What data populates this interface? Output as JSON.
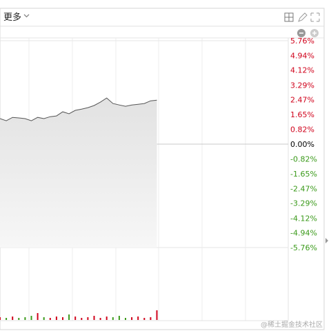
{
  "toolbar": {
    "menu": "更多"
  },
  "chart_data": {
    "type": "line",
    "values": [
      1.42,
      1.3,
      1.49,
      1.46,
      1.42,
      1.3,
      1.49,
      1.42,
      1.53,
      1.57,
      1.8,
      1.69,
      1.88,
      1.95,
      2.03,
      2.15,
      2.34,
      2.57,
      2.26,
      2.18,
      2.11,
      2.18,
      2.22,
      2.26,
      2.41,
      2.45
    ],
    "color": "#555555",
    "ylim": [
      -5.76,
      5.76
    ],
    "yticks": [
      {
        "value": 5.76,
        "label": "5.76%"
      },
      {
        "value": 4.94,
        "label": "4.94%"
      },
      {
        "value": 4.12,
        "label": "4.12%"
      },
      {
        "value": 3.29,
        "label": "3.29%"
      },
      {
        "value": 2.47,
        "label": "2.47%"
      },
      {
        "value": 1.65,
        "label": "1.65%"
      },
      {
        "value": 0.82,
        "label": "0.82%"
      },
      {
        "value": 0,
        "label": "0.00%"
      },
      {
        "value": -0.82,
        "label": "-0.82%"
      },
      {
        "value": -1.65,
        "label": "-1.65%"
      },
      {
        "value": -2.47,
        "label": "-2.47%"
      },
      {
        "value": -3.29,
        "label": "-3.29%"
      },
      {
        "value": -4.12,
        "label": "-4.12%"
      },
      {
        "value": -4.94,
        "label": "-4.94%"
      },
      {
        "value": -5.76,
        "label": "-5.76%"
      }
    ],
    "tick_colors": {
      "positive": "#d0021b",
      "zero": "#000000",
      "negative": "#3a9a1a"
    },
    "volume": [
      4,
      3,
      5,
      3,
      4,
      6,
      10,
      4,
      3,
      5,
      4,
      8,
      5,
      3,
      4,
      6,
      3,
      5,
      4,
      6,
      3,
      4,
      5,
      3,
      4,
      14
    ]
  },
  "watermark": "@稀土掘金技术社区"
}
